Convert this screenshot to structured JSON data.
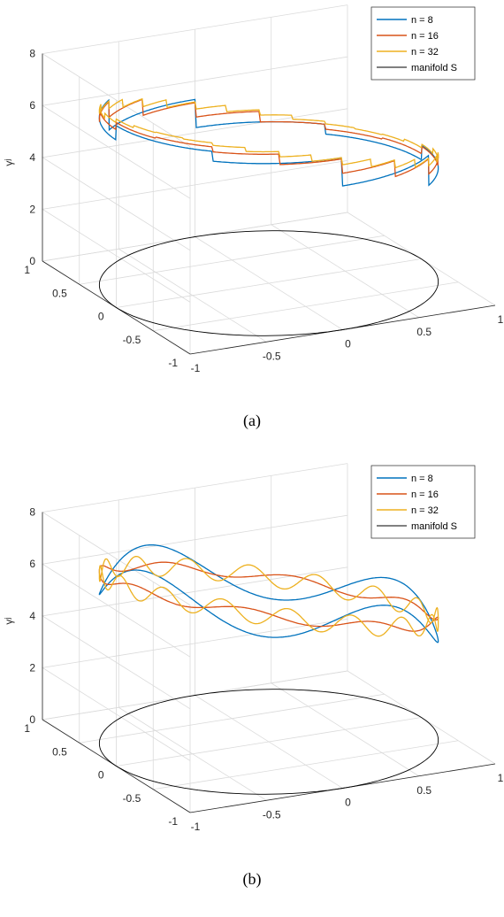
{
  "chart_data": [
    {
      "type": "line",
      "subtype": "3d-line",
      "caption": "(a)",
      "zlabel": "γʲ",
      "xlim": [
        -1,
        1
      ],
      "ylim": [
        -1,
        1
      ],
      "zlim": [
        0,
        8
      ],
      "x_ticks": [
        "-1",
        "-0.5",
        "0",
        "0.5",
        "1"
      ],
      "y_ticks": [
        "-1",
        "-0.5",
        "0",
        "0.5",
        "1"
      ],
      "z_ticks": [
        "0",
        "2",
        "4",
        "6",
        "8"
      ],
      "grid": true,
      "legend_position": "top-right",
      "legend": [
        "n = 8",
        "n = 16",
        "n = 32",
        "manifold S"
      ],
      "colors": [
        "#0072BD",
        "#D95319",
        "#EDB120",
        "#000000"
      ],
      "shape": "piecewise-constant",
      "series": [
        {
          "name": "n = 8",
          "steps": 8,
          "amplitude": 0.0,
          "phase_deg": 0
        },
        {
          "name": "n = 16",
          "steps": 16,
          "amplitude": 0.0,
          "phase_deg": 0
        },
        {
          "name": "n = 32",
          "steps": 32,
          "amplitude": 0.0,
          "phase_deg": 0
        },
        {
          "name": "manifold S",
          "z": 0
        }
      ]
    },
    {
      "type": "line",
      "subtype": "3d-line",
      "caption": "(b)",
      "zlabel": "γʲ",
      "xlim": [
        -1,
        1
      ],
      "ylim": [
        -1,
        1
      ],
      "zlim": [
        0,
        8
      ],
      "x_ticks": [
        "-1",
        "-0.5",
        "0",
        "0.5",
        "1"
      ],
      "y_ticks": [
        "-1",
        "-0.5",
        "0",
        "0.5",
        "1"
      ],
      "z_ticks": [
        "0",
        "2",
        "4",
        "6",
        "8"
      ],
      "grid": true,
      "legend_position": "top-right",
      "legend": [
        "n = 8",
        "n = 16",
        "n = 32",
        "manifold S"
      ],
      "colors": [
        "#0072BD",
        "#D95319",
        "#EDB120",
        "#000000"
      ],
      "shape": "smooth",
      "series": [
        {
          "name": "n = 8",
          "harmonics": 8,
          "amplitude": 0.55,
          "phase_deg": 20
        },
        {
          "name": "n = 16",
          "harmonics": 16,
          "amplitude": 0.12,
          "phase_deg": 0
        },
        {
          "name": "n = 32",
          "harmonics": 32,
          "amplitude": 0.25,
          "phase_deg": 40
        },
        {
          "name": "manifold S",
          "z": 0
        }
      ]
    }
  ]
}
